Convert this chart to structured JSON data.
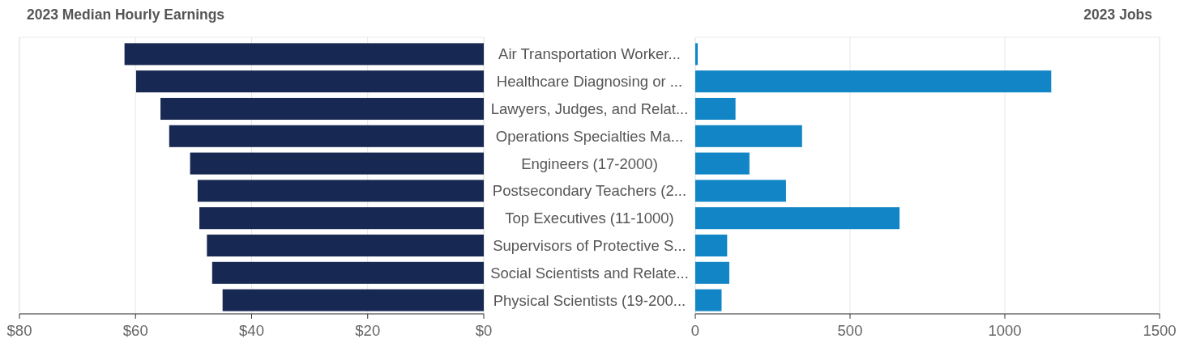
{
  "chart_data": [
    {
      "type": "bar",
      "orientation": "horizontal",
      "title": "2023 Median Hourly Earnings",
      "categories": [
        "Air Transportation Worker...",
        "Healthcare Diagnosing or ...",
        "Lawyers, Judges, and Relat...",
        "Operations Specialties Ma...",
        "Engineers (17-2000)",
        "Postsecondary Teachers (2...",
        "Top Executives (11-1000)",
        "Supervisors of Protective S...",
        "Social Scientists and Relate...",
        "Physical Scientists (19-200..."
      ],
      "series": [
        {
          "color": "#172852",
          "values": [
            61.9,
            59.9,
            55.7,
            54.2,
            50.6,
            49.3,
            49.0,
            47.7,
            46.8,
            45.0
          ]
        }
      ],
      "xlim": [
        80,
        0
      ],
      "xticks": [
        {
          "value": 80,
          "label": "$80"
        },
        {
          "value": 60,
          "label": "$60"
        },
        {
          "value": 40,
          "label": "$40"
        },
        {
          "value": 20,
          "label": "$20"
        },
        {
          "value": 0,
          "label": "$0"
        }
      ],
      "grid": "x"
    },
    {
      "type": "bar",
      "orientation": "horizontal",
      "title": "2023 Jobs",
      "categories": [
        null,
        null,
        null,
        null,
        null,
        null,
        null,
        null,
        null,
        null
      ],
      "series": [
        {
          "color": "#1185c5",
          "values": [
            8,
            1150,
            130,
            345,
            175,
            293,
            660,
            103,
            110,
            85
          ]
        }
      ],
      "xlim": [
        0,
        1500
      ],
      "xticks": [
        0,
        500,
        1000,
        1500
      ],
      "grid": "x"
    }
  ]
}
